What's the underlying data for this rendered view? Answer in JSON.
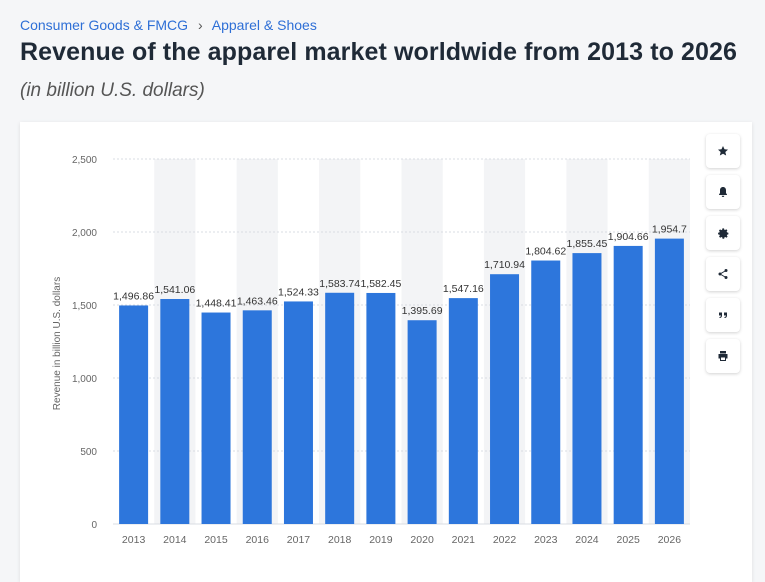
{
  "breadcrumb": {
    "category": "Consumer Goods & FMCG",
    "separator": "›",
    "subcategory": "Apparel & Shoes"
  },
  "page": {
    "title": "Revenue of the apparel market worldwide from 2013 to 2026",
    "subtitle": "(in billion U.S. dollars)"
  },
  "toolbar": {
    "icons": [
      "star-icon",
      "bell-icon",
      "gear-icon",
      "share-icon",
      "quote-icon",
      "print-icon"
    ]
  },
  "colors": {
    "bar": "#2d76dc",
    "band": "#f3f4f6",
    "grid": "#d9dde3",
    "text": "#333333",
    "axis_text": "#666666"
  },
  "chart_data": {
    "type": "bar",
    "categories": [
      "2013",
      "2014",
      "2015",
      "2016",
      "2017",
      "2018",
      "2019",
      "2020",
      "2021",
      "2022",
      "2023",
      "2024",
      "2025",
      "2026"
    ],
    "values": [
      1496.86,
      1541.06,
      1448.41,
      1463.46,
      1524.33,
      1583.74,
      1582.45,
      1395.69,
      1547.16,
      1710.94,
      1804.62,
      1855.45,
      1904.66,
      1954.7
    ],
    "value_labels": [
      "1,496.86",
      "1,541.06",
      "1,448.41",
      "1,463.46",
      "1,524.33",
      "1,583.74",
      "1,582.45",
      "1,395.69",
      "1,547.16",
      "1,710.94",
      "1,804.62",
      "1,855.45",
      "1,904.66",
      "1,954.7"
    ],
    "ylabel": "Revenue in billion U.S. dollars",
    "xlabel": "",
    "ylim": [
      0,
      2500
    ],
    "yticks": [
      0,
      500,
      1000,
      1500,
      2000,
      2500
    ],
    "ytick_labels": [
      "0",
      "500",
      "1,000",
      "1,500",
      "2,000",
      "2,500"
    ],
    "grid": true,
    "legend": "none"
  }
}
